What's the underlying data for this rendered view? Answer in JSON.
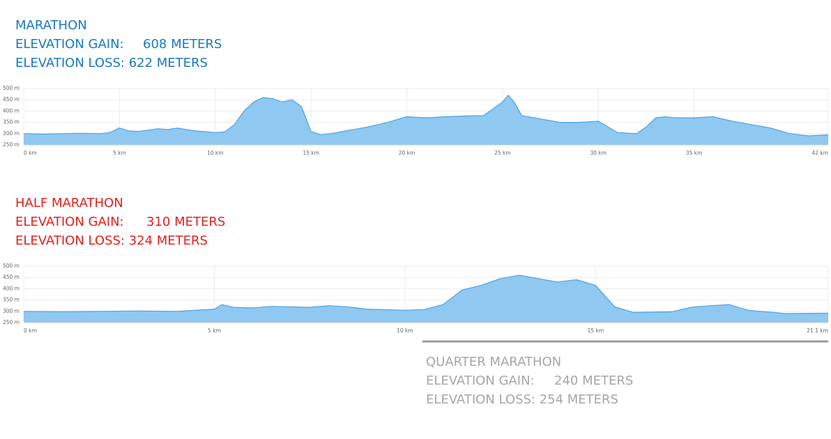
{
  "chart_data": [
    {
      "type": "area",
      "title": "MARATHON",
      "gain_label": "ELEVATION GAIN:",
      "gain_value": "608 METERS",
      "loss": "ELEVATION LOSS: 622 METERS",
      "header_color": "#1a78c2",
      "color": "#8fc8f0",
      "line_color": "#4ea3e2",
      "grid": true,
      "x": [
        0,
        1,
        2,
        3,
        4,
        4.5,
        5,
        5.5,
        6,
        6.5,
        7,
        7.5,
        8,
        8.5,
        9,
        10,
        10.5,
        11,
        11.5,
        12,
        12.5,
        13,
        13.5,
        14,
        14.5,
        15,
        15.5,
        16,
        17,
        18,
        19,
        20,
        21,
        22,
        23,
        24,
        24.5,
        25,
        25.3,
        25.6,
        26,
        27,
        28,
        29,
        30,
        30.5,
        31,
        32,
        32.5,
        33,
        33.5,
        34,
        35,
        36,
        37,
        38,
        39,
        40,
        41,
        42
      ],
      "values": [
        300,
        298,
        300,
        302,
        300,
        305,
        325,
        312,
        310,
        315,
        322,
        318,
        325,
        318,
        312,
        305,
        308,
        340,
        400,
        440,
        460,
        455,
        440,
        450,
        420,
        310,
        295,
        300,
        315,
        330,
        350,
        375,
        370,
        375,
        378,
        380,
        410,
        440,
        470,
        440,
        380,
        365,
        350,
        350,
        355,
        330,
        305,
        300,
        330,
        370,
        375,
        370,
        370,
        375,
        355,
        340,
        325,
        300,
        290,
        295
      ],
      "xlim": [
        0,
        42
      ],
      "xticks": [
        {
          "value": 0,
          "label": "0 km"
        },
        {
          "value": 5,
          "label": "5 km"
        },
        {
          "value": 10,
          "label": "10 km"
        },
        {
          "value": 15,
          "label": "15 km"
        },
        {
          "value": 20,
          "label": "20 km"
        },
        {
          "value": 25,
          "label": "25 km"
        },
        {
          "value": 30,
          "label": "30 km"
        },
        {
          "value": 35,
          "label": "35 km"
        },
        {
          "value": 42,
          "label": "42 km"
        }
      ],
      "ylim": [
        250,
        500
      ],
      "yticks": [
        {
          "value": 250,
          "label": "250 m"
        },
        {
          "value": 300,
          "label": "300 m"
        },
        {
          "value": 350,
          "label": "350 m"
        },
        {
          "value": 400,
          "label": "400 m"
        },
        {
          "value": 450,
          "label": "450 m"
        },
        {
          "value": 500,
          "label": "500 m"
        }
      ]
    },
    {
      "type": "area",
      "title": "HALF MARATHON",
      "gain_label": "ELEVATION GAIN:",
      "gain_value": "310 METERS",
      "loss": "ELEVATION LOSS: 324 METERS",
      "header_color": "#e3211c",
      "color": "#8fc8f0",
      "line_color": "#4ea3e2",
      "grid": true,
      "x": [
        0,
        1,
        2,
        3,
        4,
        5,
        5.2,
        5.5,
        6,
        6.5,
        7,
        7.5,
        8,
        8.5,
        9,
        10,
        10.5,
        11,
        11.5,
        12,
        12.5,
        13,
        13.5,
        14,
        14.5,
        15,
        15.5,
        16,
        17,
        17.5,
        18,
        18.5,
        19,
        20,
        21.1
      ],
      "values": [
        300,
        298,
        300,
        302,
        300,
        310,
        330,
        318,
        315,
        322,
        320,
        318,
        325,
        320,
        310,
        305,
        308,
        330,
        395,
        415,
        445,
        460,
        445,
        430,
        440,
        415,
        320,
        295,
        298,
        318,
        325,
        330,
        305,
        290,
        292
      ],
      "xlim": [
        0,
        21.1
      ],
      "xticks": [
        {
          "value": 0,
          "label": "0 km"
        },
        {
          "value": 5,
          "label": "5 km"
        },
        {
          "value": 10,
          "label": "10 km"
        },
        {
          "value": 15,
          "label": "15 km"
        },
        {
          "value": 21.1,
          "label": "21.1 km"
        }
      ],
      "ylim": [
        250,
        500
      ],
      "yticks": [
        {
          "value": 250,
          "label": "250 m"
        },
        {
          "value": 300,
          "label": "300 m"
        },
        {
          "value": 350,
          "label": "350 m"
        },
        {
          "value": 400,
          "label": "400 m"
        },
        {
          "value": 450,
          "label": "450 m"
        },
        {
          "value": 500,
          "label": "500 m"
        }
      ]
    }
  ],
  "quarter": {
    "title": "QUARTER MARATHON",
    "gain_label": "ELEVATION GAIN:",
    "gain_value": "240 METERS",
    "loss": "ELEVATION LOSS: 254 METERS"
  }
}
